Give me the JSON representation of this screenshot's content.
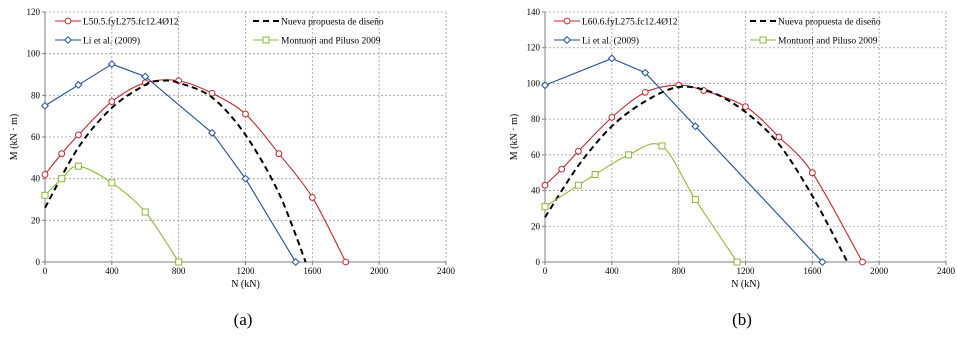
{
  "chart_data": [
    {
      "type": "line",
      "caption": "(a)",
      "xlabel": "N (kN)",
      "ylabel": "M (kN · m)",
      "xlim": [
        0,
        2400
      ],
      "ylim": [
        0,
        120
      ],
      "xticks": [
        0,
        400,
        800,
        1200,
        1600,
        2000,
        2400
      ],
      "yticks": [
        0,
        20,
        40,
        60,
        80,
        100,
        120
      ],
      "grid": true,
      "series": [
        {
          "name": "L50.5.fyL275.fc12.4Ø12",
          "color": "#c0262d",
          "style": "solid",
          "marker": "circle",
          "smooth": true,
          "x": [
            0,
            100,
            200,
            400,
            600,
            800,
            1000,
            1200,
            1400,
            1600,
            1800
          ],
          "y": [
            42,
            52,
            61,
            77,
            86,
            87,
            81,
            71,
            52,
            31,
            0
          ]
        },
        {
          "name": "Li et al. (2009)",
          "color": "#1f4e99",
          "style": "solid",
          "marker": "diamond",
          "smooth": false,
          "x": [
            0,
            200,
            400,
            600,
            1000,
            1200,
            1500
          ],
          "y": [
            75,
            85,
            95,
            89,
            62,
            40,
            0
          ]
        },
        {
          "name": "Nueva propuesta de diseño",
          "color": "#000000",
          "style": "dashed",
          "marker": "none",
          "smooth": true,
          "x": [
            0,
            200,
            400,
            600,
            700,
            800,
            1000,
            1200,
            1400,
            1560
          ],
          "y": [
            26,
            55,
            74,
            85,
            87,
            86,
            79,
            61,
            33,
            0
          ]
        },
        {
          "name": "Montuori and Piluso 2009",
          "color": "#8db83c",
          "style": "solid",
          "marker": "square",
          "smooth": true,
          "x": [
            0,
            100,
            200,
            400,
            600,
            800
          ],
          "y": [
            32,
            40,
            46,
            38,
            24,
            0
          ]
        }
      ]
    },
    {
      "type": "line",
      "caption": "(b)",
      "xlabel": "N (kN)",
      "ylabel": "M (kN · m)",
      "xlim": [
        0,
        2400
      ],
      "ylim": [
        0,
        140
      ],
      "xticks": [
        0,
        400,
        800,
        1200,
        1600,
        2000,
        2400
      ],
      "yticks": [
        0,
        20,
        40,
        60,
        80,
        100,
        120,
        140
      ],
      "grid": true,
      "series": [
        {
          "name": "L60.6.fyL275.fc12.4Ø12",
          "color": "#c0262d",
          "style": "solid",
          "marker": "circle",
          "smooth": true,
          "x": [
            0,
            100,
            200,
            400,
            600,
            800,
            950,
            1200,
            1400,
            1600,
            1900
          ],
          "y": [
            43,
            52,
            62,
            81,
            95,
            99,
            96,
            87,
            70,
            50,
            0
          ]
        },
        {
          "name": "Li et al. (2009)",
          "color": "#1f4e99",
          "style": "solid",
          "marker": "diamond",
          "smooth": false,
          "x": [
            0,
            400,
            600,
            900,
            1660
          ],
          "y": [
            99,
            114,
            106,
            76,
            0
          ]
        },
        {
          "name": "Nueva propuesta de diseño",
          "color": "#000000",
          "style": "dashed",
          "marker": "none",
          "smooth": true,
          "x": [
            0,
            200,
            400,
            600,
            800,
            1000,
            1200,
            1400,
            1600,
            1810
          ],
          "y": [
            25,
            54,
            76,
            90,
            98,
            95,
            84,
            66,
            37,
            0
          ]
        },
        {
          "name": "Montuori and Piluso 2009",
          "color": "#8db83c",
          "style": "solid",
          "marker": "square",
          "smooth": true,
          "x": [
            0,
            200,
            300,
            500,
            700,
            900,
            1150
          ],
          "y": [
            31,
            43,
            49,
            60,
            65,
            35,
            0
          ]
        }
      ]
    }
  ]
}
